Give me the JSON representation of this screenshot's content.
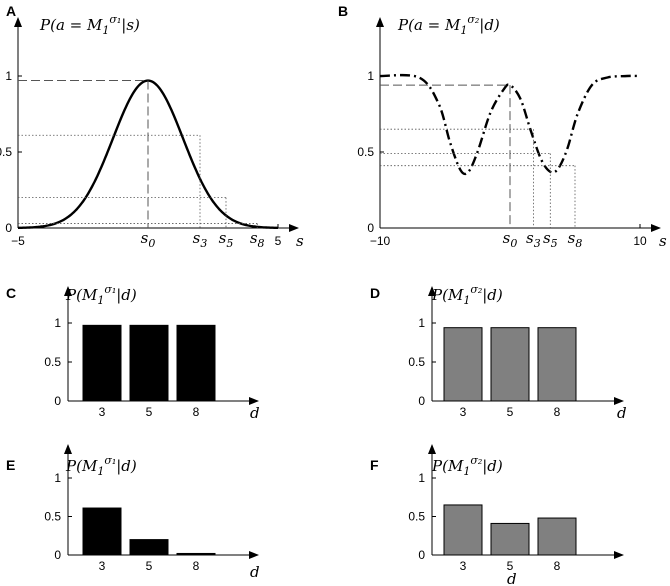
{
  "panels": {
    "A": {
      "letter": "A",
      "title": "P(a = M₁^σ₁ | s)",
      "xlabel": "s"
    },
    "B": {
      "letter": "B",
      "title": "P(a = M₁^σ₂ | d)",
      "xlabel": "s"
    },
    "C": {
      "letter": "C",
      "title": "P(M₁^σ₁ | d)",
      "xlabel": "d"
    },
    "D": {
      "letter": "D",
      "title": "P(M₁^σ₂ | d)",
      "xlabel": "d"
    },
    "E": {
      "letter": "E",
      "title": "P(M₁^σ₁ | d)",
      "xlabel": "d"
    },
    "F": {
      "letter": "F",
      "title": "P(M₁^σ₂ | d)",
      "xlabel": "d"
    }
  },
  "chart_data": [
    {
      "id": "A",
      "type": "line",
      "title": "P(a = M1^σ1 | s)",
      "xlabel": "s",
      "ylabel": "",
      "xlim": [
        -5,
        5
      ],
      "ylim": [
        0,
        1.1
      ],
      "x_tick_labels": [
        "−5",
        "5"
      ],
      "y_tick_labels": [
        "0",
        "0.5",
        "1"
      ],
      "y_ticks": [
        0,
        0.5,
        1
      ],
      "series": [
        {
          "function": "gaussian",
          "peak": 0.97,
          "mu": 0,
          "sigma": 1.35,
          "line_style": "solid",
          "color": "#000000"
        }
      ],
      "markers": [
        {
          "label": "s0",
          "x": 0,
          "y": 0.97
        },
        {
          "label": "s3",
          "x": 2,
          "y": 0.61
        },
        {
          "label": "s5",
          "x": 3,
          "y": 0.2
        },
        {
          "label": "s8",
          "x": 4.2,
          "y": 0.03
        }
      ]
    },
    {
      "id": "B",
      "type": "line",
      "title": "P(a = M1^σ2 | d)",
      "xlabel": "s",
      "ylabel": "",
      "xlim": [
        -10,
        10
      ],
      "ylim": [
        0,
        1.1
      ],
      "x_tick_labels": [
        "−10",
        "10"
      ],
      "y_tick_labels": [
        "0",
        "0.5",
        "1"
      ],
      "y_ticks": [
        0,
        0.5,
        1
      ],
      "series": [
        {
          "function": "double-dip",
          "line_style": "dash-dot",
          "color": "#000000",
          "points": [
            [
              -10,
              1
            ],
            [
              -7,
              0.99
            ],
            [
              -5.5,
              0.82
            ],
            [
              -4.6,
              0.56
            ],
            [
              -3.8,
              0.38
            ],
            [
              -3.2,
              0.37
            ],
            [
              -2.5,
              0.5
            ],
            [
              -1.5,
              0.76
            ],
            [
              -0.5,
              0.91
            ],
            [
              0,
              0.94
            ],
            [
              0.8,
              0.85
            ],
            [
              1.6,
              0.64
            ],
            [
              2.4,
              0.45
            ],
            [
              3.1,
              0.37
            ],
            [
              3.7,
              0.39
            ],
            [
              4.4,
              0.52
            ],
            [
              5.2,
              0.75
            ],
            [
              6.3,
              0.94
            ],
            [
              7.5,
              0.99
            ],
            [
              9,
              1
            ],
            [
              10,
              1
            ]
          ]
        }
      ],
      "markers": [
        {
          "label": "s0",
          "x": 0,
          "y": 0.94
        },
        {
          "label": "s3",
          "x": 1.8,
          "y": 0.65
        },
        {
          "label": "s5",
          "x": 3.1,
          "y": 0.49
        },
        {
          "label": "s8",
          "x": 5.0,
          "y": 0.41
        }
      ]
    },
    {
      "id": "C",
      "type": "bar",
      "title": "P(M1^σ1 | d)",
      "xlabel": "d",
      "categories": [
        "3",
        "5",
        "8"
      ],
      "values": [
        0.97,
        0.97,
        0.97
      ],
      "ylim": [
        0,
        1.2
      ],
      "y_tick_labels": [
        "0",
        "0.5",
        "1"
      ],
      "y_ticks": [
        0,
        0.5,
        1
      ],
      "color": "#000000"
    },
    {
      "id": "D",
      "type": "bar",
      "title": "P(M1^σ2 | d)",
      "xlabel": "d",
      "categories": [
        "3",
        "5",
        "8"
      ],
      "values": [
        0.94,
        0.94,
        0.94
      ],
      "ylim": [
        0,
        1.2
      ],
      "y_tick_labels": [
        "0",
        "0.5",
        "1"
      ],
      "y_ticks": [
        0,
        0.5,
        1
      ],
      "color": "#808080"
    },
    {
      "id": "E",
      "type": "bar",
      "title": "P(M1^σ1 | d)",
      "xlabel": "d",
      "categories": [
        "3",
        "5",
        "8"
      ],
      "values": [
        0.61,
        0.2,
        0.02
      ],
      "ylim": [
        0,
        1.2
      ],
      "y_tick_labels": [
        "0",
        "0.5",
        "1"
      ],
      "y_ticks": [
        0,
        0.5,
        1
      ],
      "color": "#000000"
    },
    {
      "id": "F",
      "type": "bar",
      "title": "P(M1^σ2 | d)",
      "xlabel": "d",
      "categories": [
        "3",
        "5",
        "8"
      ],
      "values": [
        0.65,
        0.41,
        0.48
      ],
      "ylim": [
        0,
        1.2
      ],
      "y_tick_labels": [
        "0",
        "0.5",
        "1"
      ],
      "y_ticks": [
        0,
        0.5,
        1
      ],
      "color": "#808080"
    }
  ]
}
